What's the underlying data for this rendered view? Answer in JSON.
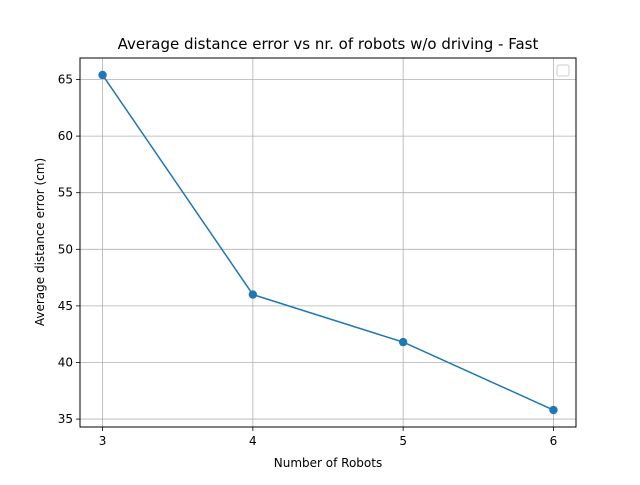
{
  "chart_data": {
    "type": "line",
    "title": "Average distance error vs nr. of robots w/o driving - Fast",
    "xlabel": "Number of Robots",
    "ylabel": "Average distance error (cm)",
    "x": [
      3,
      4,
      5,
      6
    ],
    "series": [
      {
        "values": [
          65.4,
          46.0,
          41.8,
          35.8
        ],
        "color": "#1f77b4",
        "marker": "circle"
      }
    ],
    "xticks": [
      3,
      4,
      5,
      6
    ],
    "yticks": [
      35,
      40,
      45,
      50,
      55,
      60,
      65
    ],
    "xlim": [
      2.85,
      6.15
    ],
    "ylim": [
      34.3,
      66.9
    ],
    "grid": true,
    "legend": {
      "placement": "top-right",
      "entries": []
    }
  }
}
